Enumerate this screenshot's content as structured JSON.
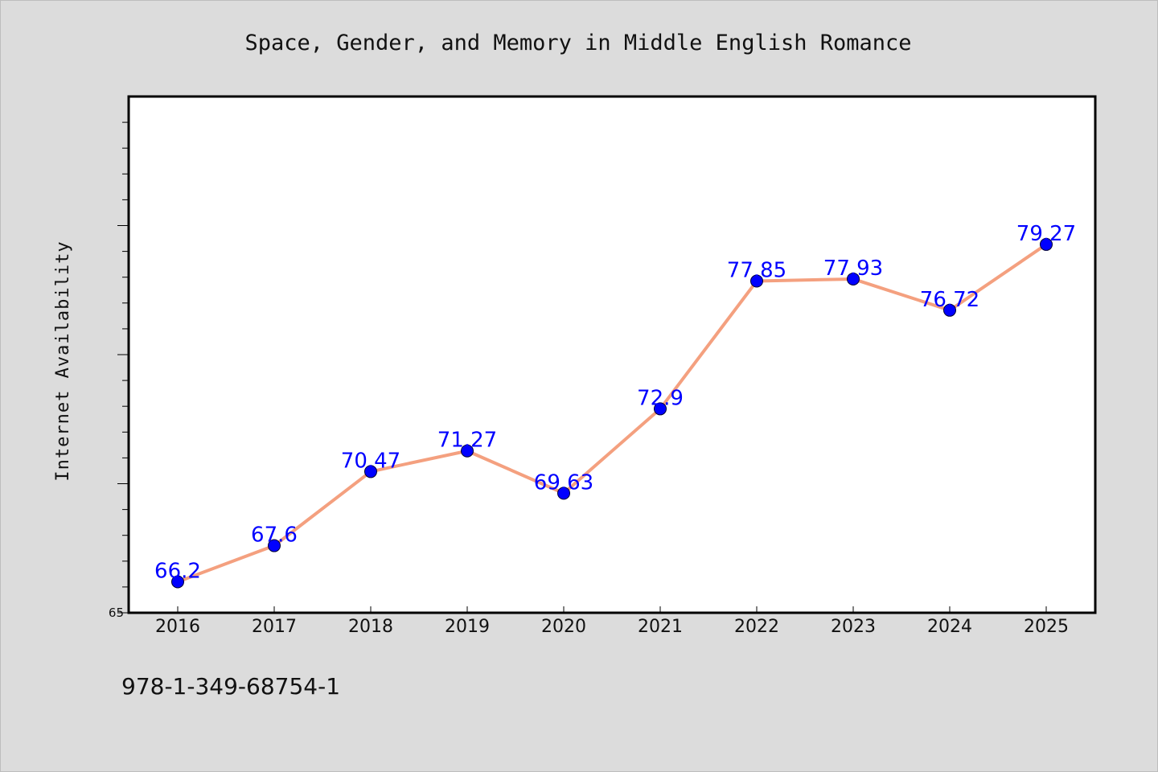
{
  "chart_data": {
    "type": "line",
    "title": "Space,  Gender,  and  Memory  in  Middle  English  Romance",
    "xlabel": "",
    "ylabel": "Internet Availability",
    "categories": [
      "2016",
      "2017",
      "2018",
      "2019",
      "2020",
      "2021",
      "2022",
      "2023",
      "2024",
      "2025"
    ],
    "series": [
      {
        "values": [
          66.2,
          67.6,
          70.47,
          71.27,
          69.63,
          72.9,
          77.85,
          77.93,
          76.72,
          79.27
        ],
        "labels": [
          "66.2",
          "67.6",
          "70.47",
          "71.27",
          "69.63",
          "72.9",
          "77.85",
          "77.93",
          "76.72",
          "79.27"
        ],
        "line_color": "#f4a07f",
        "marker_color": "#0000ff"
      }
    ],
    "ylim": [
      65,
      85
    ],
    "yticks_labeled": [
      "65"
    ],
    "grid": false,
    "legend": "none"
  },
  "footer": {
    "isbn": "978-1-349-68754-1"
  }
}
